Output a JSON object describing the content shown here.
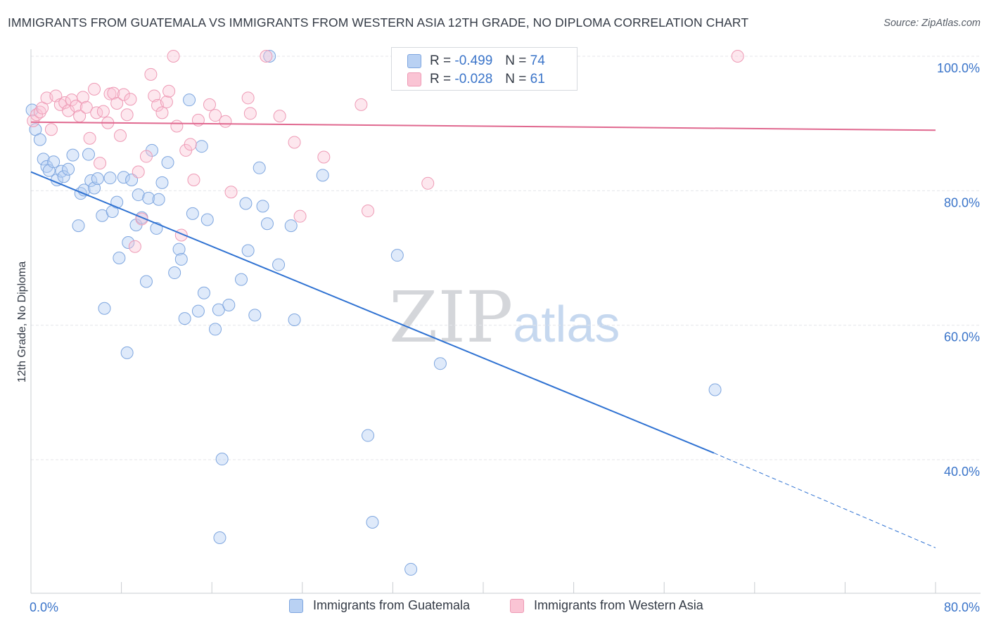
{
  "title": "IMMIGRANTS FROM GUATEMALA VS IMMIGRANTS FROM WESTERN ASIA 12TH GRADE, NO DIPLOMA CORRELATION CHART",
  "source": "Source: ZipAtlas.com",
  "watermark": {
    "zip": "ZIP",
    "atlas": "atlas"
  },
  "legend": {
    "rows": [
      {
        "r_label": "R =",
        "r_value": "-0.499",
        "n_label": "N =",
        "n_value": "74"
      },
      {
        "r_label": "R =",
        "r_value": "-0.028",
        "n_label": "N =",
        "n_value": "61"
      }
    ]
  },
  "chart_data": {
    "type": "scatter",
    "xlabel": "",
    "ylabel": "12th Grade, No Diploma",
    "xlim": [
      0,
      80
    ],
    "ylim": [
      20,
      104
    ],
    "x_tick_labels": [
      {
        "value": 0,
        "label": "0.0%"
      },
      {
        "value": 80,
        "label": "80.0%"
      }
    ],
    "x_minor_ticks": [
      8,
      16,
      24,
      32,
      40,
      48,
      56,
      64,
      72,
      80
    ],
    "y_ticks": [
      {
        "value": 100,
        "label": "100.0%"
      },
      {
        "value": 80,
        "label": "80.0%"
      },
      {
        "value": 60,
        "label": "60.0%"
      },
      {
        "value": 40,
        "label": "40.0%"
      }
    ],
    "grid": true,
    "legend_position": "top-center",
    "series": [
      {
        "name": "Immigrants from Guatemala",
        "color": "#8fb5e8",
        "line_color": "#2f72d2",
        "trend": {
          "x0": 0,
          "y0": 82.8,
          "x1": 60.4,
          "y1": 41.0,
          "x_dash_end": 80,
          "y_dash_end": 26.9
        },
        "points": [
          [
            0.1,
            92.0
          ],
          [
            0.4,
            89.1
          ],
          [
            0.8,
            87.6
          ],
          [
            1.1,
            84.7
          ],
          [
            1.4,
            83.6
          ],
          [
            1.6,
            83.0
          ],
          [
            2.0,
            84.3
          ],
          [
            2.3,
            81.6
          ],
          [
            2.7,
            82.9
          ],
          [
            2.9,
            82.1
          ],
          [
            3.3,
            83.2
          ],
          [
            3.7,
            85.3
          ],
          [
            4.2,
            74.8
          ],
          [
            4.4,
            79.6
          ],
          [
            4.7,
            80.1
          ],
          [
            5.1,
            85.4
          ],
          [
            5.3,
            81.5
          ],
          [
            5.6,
            80.4
          ],
          [
            5.9,
            81.8
          ],
          [
            6.3,
            76.3
          ],
          [
            6.5,
            62.5
          ],
          [
            7.0,
            81.9
          ],
          [
            7.2,
            76.9
          ],
          [
            7.6,
            78.3
          ],
          [
            7.8,
            70.0
          ],
          [
            8.2,
            82.0
          ],
          [
            8.5,
            55.9
          ],
          [
            8.6,
            72.3
          ],
          [
            8.9,
            81.6
          ],
          [
            9.3,
            74.9
          ],
          [
            9.5,
            79.4
          ],
          [
            9.8,
            76.0
          ],
          [
            10.2,
            66.5
          ],
          [
            10.4,
            78.9
          ],
          [
            10.7,
            86.0
          ],
          [
            11.1,
            74.4
          ],
          [
            11.3,
            78.7
          ],
          [
            11.6,
            81.2
          ],
          [
            12.1,
            84.2
          ],
          [
            12.7,
            67.8
          ],
          [
            13.1,
            71.3
          ],
          [
            13.3,
            69.8
          ],
          [
            13.6,
            61.0
          ],
          [
            14.0,
            93.5
          ],
          [
            14.3,
            76.6
          ],
          [
            14.8,
            62.1
          ],
          [
            15.1,
            86.6
          ],
          [
            15.3,
            64.8
          ],
          [
            15.6,
            75.7
          ],
          [
            16.3,
            59.4
          ],
          [
            16.6,
            62.3
          ],
          [
            16.9,
            40.1
          ],
          [
            16.7,
            28.4
          ],
          [
            17.5,
            63.0
          ],
          [
            18.6,
            66.8
          ],
          [
            19.0,
            78.1
          ],
          [
            19.2,
            71.1
          ],
          [
            19.8,
            61.5
          ],
          [
            20.2,
            83.4
          ],
          [
            20.5,
            77.7
          ],
          [
            20.9,
            75.1
          ],
          [
            21.1,
            100.0
          ],
          [
            21.9,
            69.0
          ],
          [
            23.0,
            74.8
          ],
          [
            23.3,
            60.8
          ],
          [
            25.8,
            82.3
          ],
          [
            29.8,
            43.6
          ],
          [
            30.2,
            30.7
          ],
          [
            32.4,
            70.4
          ],
          [
            33.6,
            23.7
          ],
          [
            36.2,
            54.3
          ],
          [
            38.0,
            97.6
          ],
          [
            45.3,
            100.0
          ],
          [
            60.5,
            50.4
          ]
        ]
      },
      {
        "name": "Immigrants from Western Asia",
        "color": "#f4a9c0",
        "line_color": "#e0688f",
        "trend": {
          "x0": 0,
          "y0": 90.2,
          "x1": 80,
          "y1": 89.0
        },
        "points": [
          [
            0.2,
            90.4
          ],
          [
            0.5,
            91.3
          ],
          [
            0.8,
            91.7
          ],
          [
            1.0,
            92.3
          ],
          [
            1.4,
            93.8
          ],
          [
            1.8,
            89.1
          ],
          [
            2.2,
            94.1
          ],
          [
            2.6,
            92.8
          ],
          [
            3.0,
            93.1
          ],
          [
            3.3,
            91.9
          ],
          [
            3.6,
            93.5
          ],
          [
            4.0,
            92.6
          ],
          [
            4.3,
            91.1
          ],
          [
            4.6,
            93.9
          ],
          [
            4.9,
            92.4
          ],
          [
            5.2,
            87.8
          ],
          [
            5.6,
            95.1
          ],
          [
            5.8,
            91.6
          ],
          [
            6.1,
            84.1
          ],
          [
            6.4,
            91.8
          ],
          [
            6.8,
            90.1
          ],
          [
            7.0,
            94.4
          ],
          [
            7.3,
            94.5
          ],
          [
            7.6,
            93.0
          ],
          [
            7.9,
            88.2
          ],
          [
            8.2,
            94.3
          ],
          [
            8.5,
            91.3
          ],
          [
            8.8,
            93.6
          ],
          [
            9.2,
            71.7
          ],
          [
            9.5,
            82.8
          ],
          [
            9.8,
            75.8
          ],
          [
            10.2,
            85.1
          ],
          [
            10.6,
            97.3
          ],
          [
            10.9,
            94.1
          ],
          [
            11.2,
            92.7
          ],
          [
            11.6,
            91.6
          ],
          [
            12.0,
            93.2
          ],
          [
            12.2,
            94.8
          ],
          [
            12.6,
            100.0
          ],
          [
            12.9,
            89.6
          ],
          [
            13.3,
            73.4
          ],
          [
            13.7,
            86.0
          ],
          [
            14.1,
            86.9
          ],
          [
            14.4,
            81.6
          ],
          [
            14.8,
            90.5
          ],
          [
            15.8,
            92.8
          ],
          [
            16.3,
            91.2
          ],
          [
            17.2,
            90.3
          ],
          [
            17.7,
            79.8
          ],
          [
            19.2,
            93.8
          ],
          [
            19.4,
            91.5
          ],
          [
            20.8,
            100.0
          ],
          [
            22.0,
            91.1
          ],
          [
            23.3,
            87.2
          ],
          [
            23.8,
            76.2
          ],
          [
            25.9,
            85.0
          ],
          [
            29.2,
            92.8
          ],
          [
            29.8,
            77.0
          ],
          [
            35.1,
            81.1
          ],
          [
            39.4,
            100.0
          ],
          [
            62.5,
            100.0
          ]
        ]
      }
    ]
  }
}
